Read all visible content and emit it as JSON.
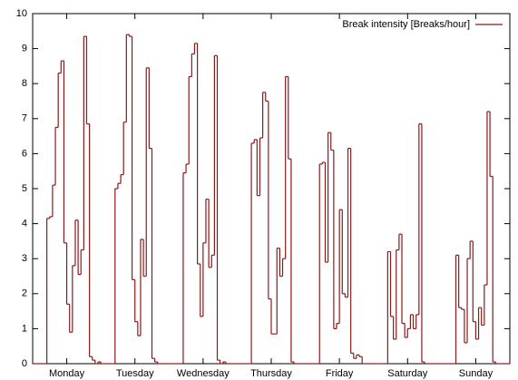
{
  "chart_data": {
    "type": "step",
    "x": [
      0,
      1,
      2,
      3,
      4,
      5,
      6,
      7,
      8,
      9,
      10,
      11,
      12,
      13,
      14,
      15,
      16,
      17,
      18,
      19,
      20,
      21,
      22,
      23,
      24,
      25,
      26,
      27,
      28,
      29,
      30,
      31,
      32,
      33,
      34,
      35,
      36,
      37,
      38,
      39,
      40,
      41,
      42,
      43,
      44,
      45,
      46,
      47,
      48,
      49,
      50,
      51,
      52,
      53,
      54,
      55,
      56,
      57,
      58,
      59,
      60,
      61,
      62,
      63,
      64,
      65,
      66,
      67,
      68,
      69,
      70,
      71,
      72,
      73,
      74,
      75,
      76,
      77,
      78,
      79,
      80,
      81,
      82,
      83,
      84,
      85,
      86,
      87,
      88,
      89,
      90,
      91,
      92,
      93,
      94,
      95,
      96,
      97,
      98,
      99,
      100,
      101,
      102,
      103,
      104,
      105,
      106,
      107,
      108,
      109,
      110,
      111,
      112,
      113,
      114,
      115,
      116,
      117,
      118,
      119,
      120,
      121,
      122,
      123,
      124,
      125,
      126,
      127,
      128,
      129,
      130,
      131,
      132,
      133,
      134,
      135,
      136,
      137,
      138,
      139,
      140,
      141,
      142,
      143,
      144,
      145,
      146,
      147,
      148,
      149,
      150,
      151,
      152,
      153,
      154,
      155,
      156,
      157,
      158,
      159,
      160,
      161,
      162,
      163,
      164,
      165,
      166,
      167
    ],
    "series": [
      {
        "name": "Break intensity [Breaks/hour]",
        "color": "#8b1a1a",
        "values": [
          0,
          0,
          0,
          0,
          0,
          4.15,
          4.2,
          5.1,
          6.75,
          8.3,
          8.65,
          3.45,
          1.7,
          0.9,
          2.8,
          4.1,
          2.55,
          3.25,
          9.35,
          6.85,
          0.2,
          0.1,
          0,
          0.05,
          0,
          0,
          0,
          0,
          0,
          5.0,
          5.15,
          5.4,
          6.9,
          9.4,
          9.35,
          2.4,
          1.2,
          0.8,
          3.55,
          2.5,
          8.45,
          6.15,
          0.15,
          0.05,
          0,
          0,
          0,
          0,
          0,
          0,
          0,
          0,
          0,
          5.45,
          5.7,
          8.2,
          8.85,
          9.15,
          2.85,
          1.35,
          3.45,
          4.7,
          2.75,
          3.1,
          8.8,
          0.1,
          0,
          0.05,
          0,
          0,
          0,
          0,
          0,
          0,
          0,
          0,
          0,
          6.3,
          6.4,
          4.8,
          6.45,
          7.75,
          7.5,
          1.85,
          0.85,
          0.85,
          3.3,
          2.5,
          3.0,
          8.2,
          5.85,
          0.05,
          0,
          0,
          0,
          0,
          0,
          0,
          0,
          0,
          0,
          5.7,
          5.75,
          2.9,
          6.6,
          6.1,
          1.0,
          1.15,
          4.4,
          2.0,
          1.9,
          6.15,
          0.3,
          0.15,
          0.25,
          0.2,
          0,
          0,
          0,
          0,
          0,
          0,
          0,
          0,
          0,
          3.2,
          1.35,
          0.7,
          3.25,
          3.7,
          1.15,
          0.75,
          1.0,
          1.4,
          1.0,
          1.4,
          6.85,
          0.05,
          0,
          0,
          0,
          0,
          0,
          0,
          0,
          0,
          0,
          0,
          0,
          3.1,
          1.6,
          1.55,
          0.6,
          3.0,
          3.5,
          1.2,
          0.7,
          1.6,
          1.1,
          2.25,
          7.2,
          5.35,
          0.05,
          0,
          0,
          0,
          0,
          0
        ]
      }
    ],
    "xlim": [
      0,
      168
    ],
    "xticks": [
      {
        "value": 12,
        "label": "Monday"
      },
      {
        "value": 36,
        "label": "Tuesday"
      },
      {
        "value": 60,
        "label": "Wednesday"
      },
      {
        "value": 84,
        "label": "Thursday"
      },
      {
        "value": 108,
        "label": "Friday"
      },
      {
        "value": 132,
        "label": "Saturday"
      },
      {
        "value": 156,
        "label": "Sunday"
      }
    ],
    "ylim": [
      0,
      10
    ],
    "yticks": [
      0,
      1,
      2,
      3,
      4,
      5,
      6,
      7,
      8,
      9,
      10
    ],
    "legend": "top-right"
  }
}
